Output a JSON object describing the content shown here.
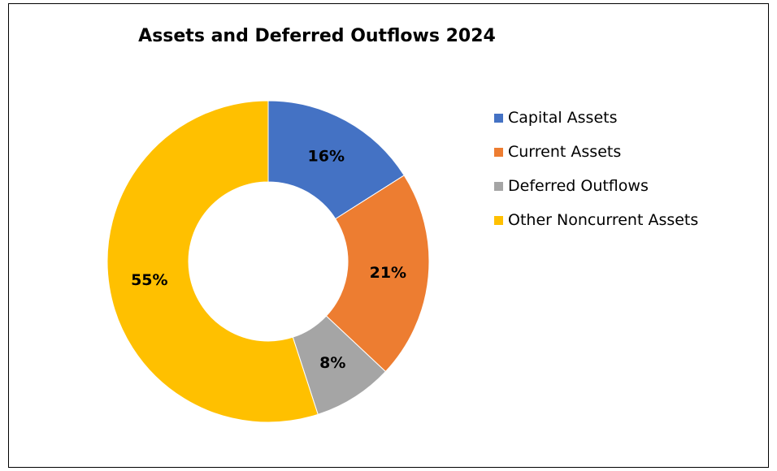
{
  "chart_data": {
    "type": "pie",
    "variant": "donut",
    "title": "Assets and Deferred Outflows 2024",
    "categories": [
      "Capital Assets",
      "Current Assets",
      "Deferred Outflows",
      "Other Noncurrent Assets"
    ],
    "values": [
      16,
      21,
      8,
      55
    ],
    "data_labels": [
      "16%",
      "21%",
      "8%",
      "55%"
    ],
    "colors": [
      "#4472C4",
      "#ED7D31",
      "#A5A5A5",
      "#FFC000"
    ],
    "legend_position": "right"
  }
}
